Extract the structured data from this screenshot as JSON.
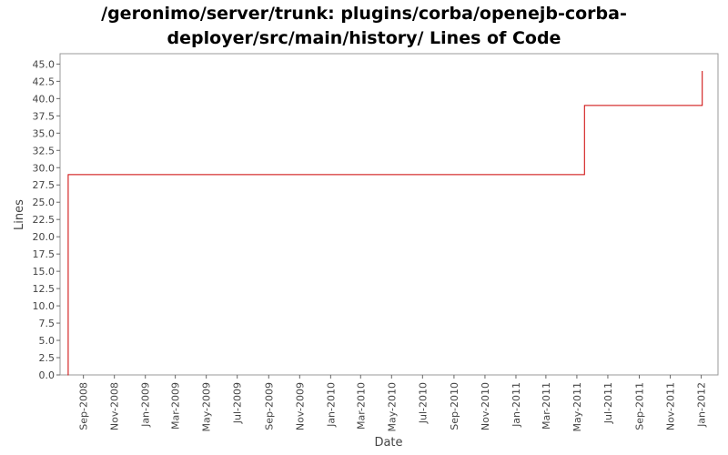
{
  "chart_data": {
    "type": "line",
    "title_line1": "/geronimo/server/trunk: plugins/corba/openejb-corba-",
    "title_line2": "deployer/src/main/history/ Lines of Code",
    "xlabel": "Date",
    "ylabel": "Lines",
    "ylim": [
      0,
      46.5
    ],
    "xlim": [
      "2008-07-17",
      "2012-02-03"
    ],
    "grid": false,
    "legend": "none",
    "series": [
      {
        "line_style": "step",
        "color": "#cc0000",
        "points": [
          {
            "date": "2008-08-01",
            "lines": 0
          },
          {
            "date": "2008-08-02",
            "lines": 29
          },
          {
            "date": "2011-05-15",
            "lines": 29
          },
          {
            "date": "2011-05-16",
            "lines": 39
          },
          {
            "date": "2012-01-02",
            "lines": 39
          },
          {
            "date": "2012-01-03",
            "lines": 44
          }
        ]
      }
    ],
    "y_ticks": [
      "0.0",
      "2.5",
      "5.0",
      "7.5",
      "10.0",
      "12.5",
      "15.0",
      "17.5",
      "20.0",
      "22.5",
      "25.0",
      "27.5",
      "30.0",
      "32.5",
      "35.0",
      "37.5",
      "40.0",
      "42.5",
      "45.0"
    ],
    "x_ticks": [
      {
        "label": "Sep-2008",
        "date": "2008-09-01"
      },
      {
        "label": "Nov-2008",
        "date": "2008-11-01"
      },
      {
        "label": "Jan-2009",
        "date": "2009-01-01"
      },
      {
        "label": "Mar-2009",
        "date": "2009-03-01"
      },
      {
        "label": "May-2009",
        "date": "2009-05-01"
      },
      {
        "label": "Jul-2009",
        "date": "2009-07-01"
      },
      {
        "label": "Sep-2009",
        "date": "2009-09-01"
      },
      {
        "label": "Nov-2009",
        "date": "2009-11-01"
      },
      {
        "label": "Jan-2010",
        "date": "2010-01-01"
      },
      {
        "label": "Mar-2010",
        "date": "2010-03-01"
      },
      {
        "label": "May-2010",
        "date": "2010-05-01"
      },
      {
        "label": "Jul-2010",
        "date": "2010-07-01"
      },
      {
        "label": "Sep-2010",
        "date": "2010-09-01"
      },
      {
        "label": "Nov-2010",
        "date": "2010-11-01"
      },
      {
        "label": "Jan-2011",
        "date": "2011-01-01"
      },
      {
        "label": "Mar-2011",
        "date": "2011-03-01"
      },
      {
        "label": "May-2011",
        "date": "2011-05-01"
      },
      {
        "label": "Jul-2011",
        "date": "2011-07-01"
      },
      {
        "label": "Sep-2011",
        "date": "2011-09-01"
      },
      {
        "label": "Nov-2011",
        "date": "2011-11-01"
      },
      {
        "label": "Jan-2012",
        "date": "2012-01-01"
      }
    ]
  }
}
